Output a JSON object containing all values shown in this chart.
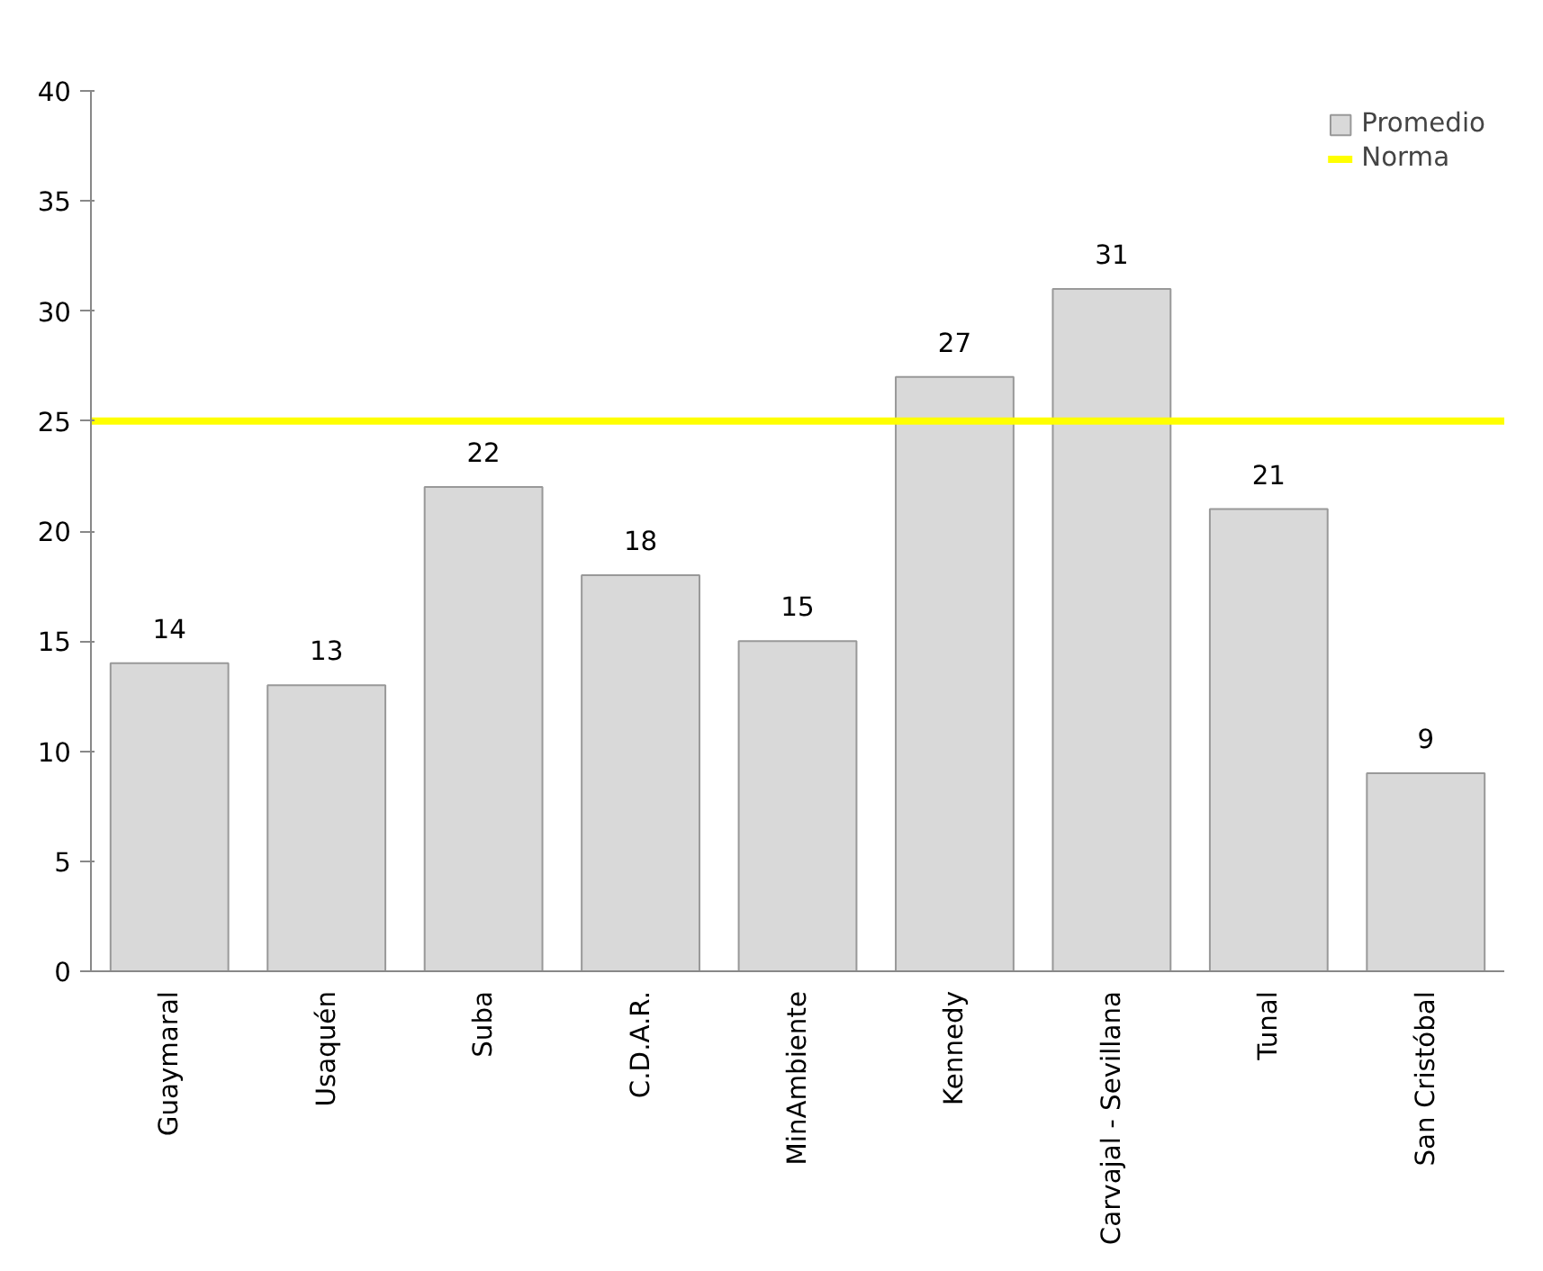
{
  "chart_data": {
    "type": "bar",
    "categories": [
      "Guaymaral",
      "Usaquén",
      "Suba",
      "C.D.A.R.",
      "MinAmbiente",
      "Kennedy",
      "Carvajal - Sevillana",
      "Tunal",
      "San Cristóbal"
    ],
    "series": [
      {
        "name": "Promedio",
        "color": "#d9d9d9",
        "values": [
          14,
          13,
          22,
          18,
          15,
          27,
          31,
          21,
          9
        ]
      }
    ],
    "ref_lines": [
      {
        "axis": "y",
        "value": 25,
        "label": "Norma",
        "color": "#ffff00"
      }
    ],
    "ylim": [
      0,
      40
    ],
    "yticks": [
      0,
      5,
      10,
      15,
      20,
      25,
      30,
      35,
      40
    ],
    "data_labels": true,
    "grid": false,
    "legend": "top right"
  }
}
